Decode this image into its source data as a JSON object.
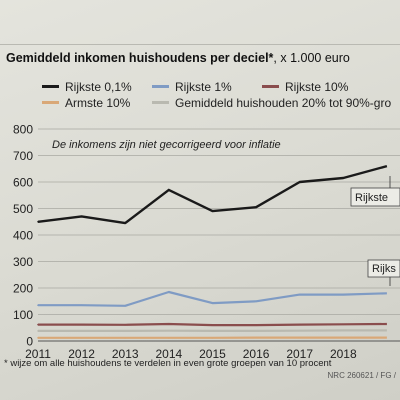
{
  "chart_data": {
    "type": "line",
    "title": "Gemiddeld inkomen huishoudens per deciel*",
    "unit": ", x 1.000 euro",
    "annotation": "De inkomens zijn niet gecorrigeerd voor inflatie",
    "x": [
      2011,
      2012,
      2013,
      2014,
      2015,
      2016,
      2017,
      2018
    ],
    "xlim": [
      2011,
      2019.3
    ],
    "ylim": [
      0,
      800
    ],
    "yticks": [
      0,
      100,
      200,
      300,
      400,
      500,
      600,
      700,
      800
    ],
    "grid": "horizontal",
    "legend_position": "top",
    "series": [
      {
        "name": "Rijkste 0,1%",
        "color": "#1a1a1a",
        "values": [
          450,
          470,
          445,
          570,
          490,
          505,
          600,
          615
        ],
        "extra_x": 2019,
        "extra_value": 660,
        "end_label": "Rijkste"
      },
      {
        "name": "Rijkste 1%",
        "color": "#7f9bc4",
        "values": [
          135,
          135,
          133,
          185,
          143,
          150,
          175,
          175
        ],
        "extra_x": 2019,
        "extra_value": 180,
        "end_label": "Rijks"
      },
      {
        "name": "Rijkste 10%",
        "color": "#8a4d4d",
        "values": [
          62,
          62,
          61,
          64,
          60,
          60,
          62,
          63
        ],
        "extra_x": 2019,
        "extra_value": 64
      },
      {
        "name": "Armste 10%",
        "color": "#d9a877",
        "values": [
          12,
          12,
          12,
          12,
          12,
          13,
          13,
          13
        ],
        "extra_x": 2019,
        "extra_value": 13
      },
      {
        "name": "Gemiddeld huishouden 20% tot 90%-gro",
        "color": "#b9b9b0",
        "values": [
          38,
          38,
          38,
          39,
          38,
          38,
          39,
          40
        ],
        "extra_x": 2019,
        "extra_value": 40
      }
    ]
  },
  "footnote": "* wijze om alle huishoudens te verdelen in even grote groepen van 10 procent",
  "credit": "NRC 260621 / FG /"
}
